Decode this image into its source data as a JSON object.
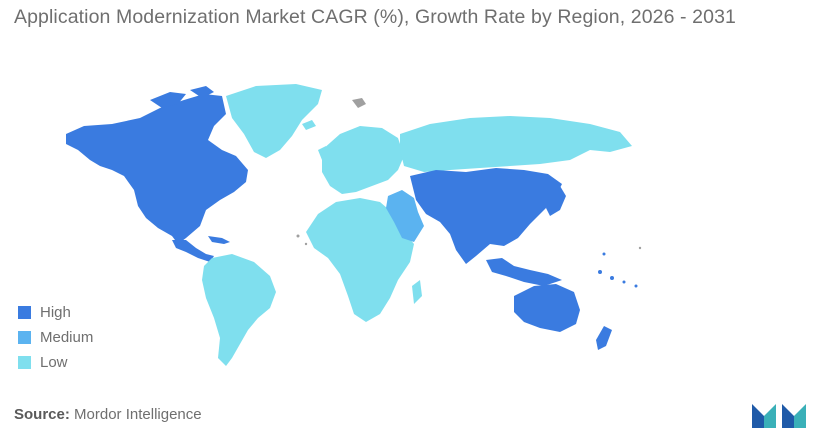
{
  "title": "Application Modernization Market  CAGR (%), Growth Rate by Region, 2026 - 2031",
  "colors": {
    "high": "#3a7be0",
    "medium": "#5bb3f0",
    "low": "#7fdfee",
    "nodata": "#a0a0a0",
    "text": "#6f6f6f"
  },
  "legend": [
    {
      "label": "High",
      "color": "#3a7be0"
    },
    {
      "label": "Medium",
      "color": "#5bb3f0"
    },
    {
      "label": "Low",
      "color": "#7fdfee"
    }
  ],
  "regions": [
    {
      "name": "North America",
      "level": "High"
    },
    {
      "name": "Asia-Pacific",
      "level": "High"
    },
    {
      "name": "Middle East",
      "level": "Medium"
    },
    {
      "name": "Europe",
      "level": "Low"
    },
    {
      "name": "Latin America",
      "level": "Low"
    },
    {
      "name": "Africa",
      "level": "Low"
    }
  ],
  "source": {
    "label": "Source:",
    "text": "Mordor Intelligence"
  },
  "logo_name": "mordor-intelligence-logo"
}
